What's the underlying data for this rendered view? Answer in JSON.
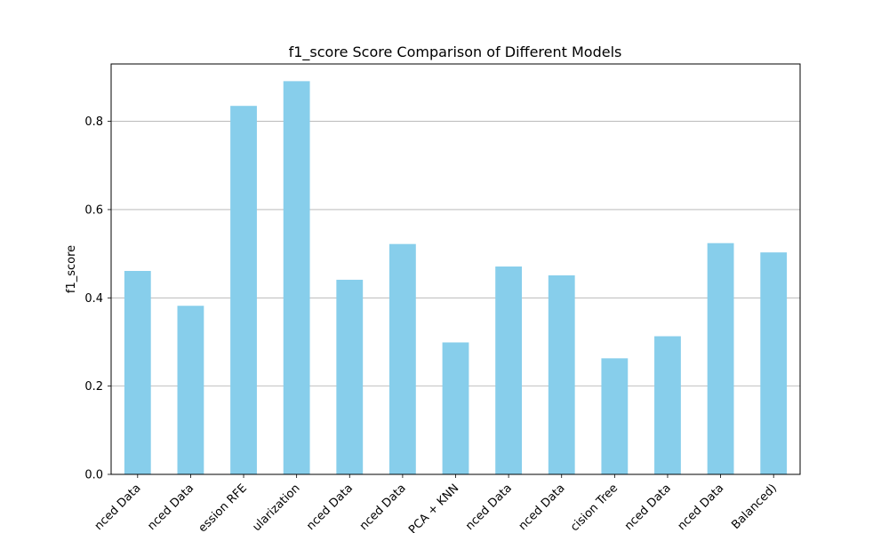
{
  "chart_data": {
    "type": "bar",
    "title": "f1_score Score Comparison of Different Models",
    "xlabel": "",
    "ylabel": "f1_score",
    "ylim": [
      0,
      0.93
    ],
    "yticks": [
      0.0,
      0.2,
      0.4,
      0.6,
      0.8
    ],
    "ytick_labels": [
      "0.0",
      "0.2",
      "0.4",
      "0.6",
      "0.8"
    ],
    "grid": "y",
    "legend": "none",
    "bar_color": "#87ceeb",
    "categories": [
      "nced Data",
      "nced Data",
      "ession RFE",
      "ularization",
      "nced Data",
      "nced Data",
      "PCA + KNN",
      "nced Data",
      "nced Data",
      "cision Tree",
      "nced Data",
      "nced Data",
      "Balanced)"
    ],
    "values": [
      0.461,
      0.382,
      0.835,
      0.891,
      0.441,
      0.522,
      0.299,
      0.471,
      0.451,
      0.263,
      0.313,
      0.524,
      0.503
    ]
  }
}
